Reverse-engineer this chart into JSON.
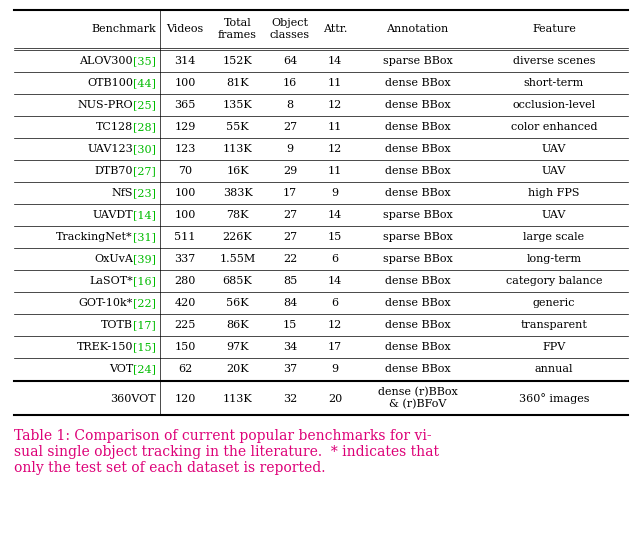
{
  "headers": [
    "Benchmark",
    "Videos",
    "Total\nframes",
    "Object\nclasses",
    "Attr.",
    "Annotation",
    "Feature"
  ],
  "rows": [
    [
      "ALOV300",
      "[35]",
      "314",
      "152K",
      "64",
      "14",
      "sparse BBox",
      "diverse scenes"
    ],
    [
      "OTB100",
      "[44]",
      "100",
      "81K",
      "16",
      "11",
      "dense BBox",
      "short-term"
    ],
    [
      "NUS-PRO",
      "[25]",
      "365",
      "135K",
      "8",
      "12",
      "dense BBox",
      "occlusion-level"
    ],
    [
      "TC128",
      "[28]",
      "129",
      "55K",
      "27",
      "11",
      "dense BBox",
      "color enhanced"
    ],
    [
      "UAV123",
      "[30]",
      "123",
      "113K",
      "9",
      "12",
      "dense BBox",
      "UAV"
    ],
    [
      "DTB70",
      "[27]",
      "70",
      "16K",
      "29",
      "11",
      "dense BBox",
      "UAV"
    ],
    [
      "NfS",
      "[23]",
      "100",
      "383K",
      "17",
      "9",
      "dense BBox",
      "high FPS"
    ],
    [
      "UAVDT",
      "[14]",
      "100",
      "78K",
      "27",
      "14",
      "sparse BBox",
      "UAV"
    ],
    [
      "TrackingNet*",
      "[31]",
      "511",
      "226K",
      "27",
      "15",
      "sparse BBox",
      "large scale"
    ],
    [
      "OxUvA",
      "[39]",
      "337",
      "1.55M",
      "22",
      "6",
      "sparse BBox",
      "long-term"
    ],
    [
      "LaSOT*",
      "[16]",
      "280",
      "685K",
      "85",
      "14",
      "dense BBox",
      "category balance"
    ],
    [
      "GOT-10k*",
      "[22]",
      "420",
      "56K",
      "84",
      "6",
      "dense BBox",
      "generic"
    ],
    [
      "TOTB",
      "[17]",
      "225",
      "86K",
      "15",
      "12",
      "dense BBox",
      "transparent"
    ],
    [
      "TREK-150",
      "[15]",
      "150",
      "97K",
      "34",
      "17",
      "dense BBox",
      "FPV"
    ],
    [
      "VOT",
      "[24]",
      "62",
      "20K",
      "37",
      "9",
      "dense BBox",
      "annual"
    ]
  ],
  "last_row": [
    "360VOT",
    "",
    "120",
    "113K",
    "32",
    "20",
    "dense (r)BBox\n& (r)BFoV",
    "360° images"
  ],
  "caption": "Table 1: Comparison of current popular benchmarks for vi-\nsual single object tracking in the literature.  * indicates that\nonly the test set of each dataset is reported.",
  "bg_color": "#ffffff",
  "text_color": "#000000",
  "green_color": "#00bb00",
  "caption_color": "#dd0077",
  "fontsize": 8.0,
  "header_fontsize": 8.0,
  "caption_fontsize": 10.0
}
